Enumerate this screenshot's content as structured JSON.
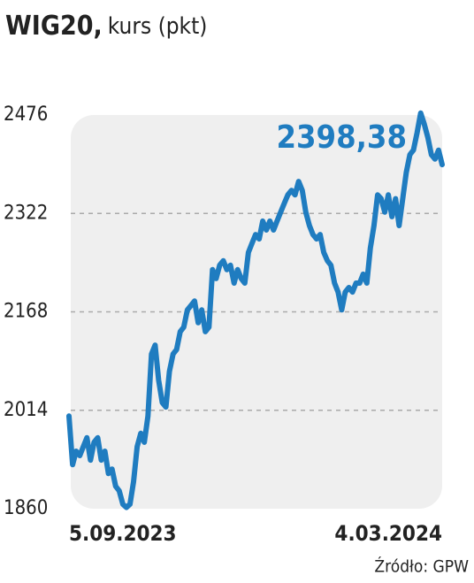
{
  "chart_data": {
    "type": "line",
    "title": "WIG20,",
    "subtitle": "kurs (pkt)",
    "source": "Źródło: GPW",
    "categories": [
      "5.09.2023",
      null,
      null,
      null,
      null,
      null,
      null,
      null,
      null,
      null,
      null,
      null,
      null,
      null,
      null,
      null,
      null,
      null,
      null,
      null,
      null,
      null,
      null,
      null,
      null,
      null,
      null,
      null,
      null,
      null,
      null,
      null,
      null,
      null,
      null,
      null,
      null,
      null,
      null,
      null,
      null,
      null,
      null,
      null,
      null,
      null,
      null,
      null,
      null,
      null,
      null,
      null,
      null,
      null,
      null,
      null,
      null,
      null,
      null,
      null,
      null,
      null,
      null,
      null,
      null,
      null,
      null,
      null,
      null,
      null,
      null,
      null,
      null,
      null,
      null,
      null,
      null,
      null,
      null,
      null,
      null,
      null,
      null,
      null,
      null,
      null,
      null,
      null,
      null,
      null,
      null,
      null,
      null,
      null,
      null,
      null,
      null,
      null,
      null,
      null,
      null,
      null,
      null,
      null,
      "4.03.2024"
    ],
    "series": [
      {
        "name": "WIG20",
        "color": "#1f7cc0",
        "values": [
          2005,
          1929,
          1950,
          1943,
          1957,
          1971,
          1936,
          1964,
          1971,
          1936,
          1950,
          1915,
          1922,
          1895,
          1888,
          1867,
          1862,
          1867,
          1902,
          1957,
          1978,
          1964,
          2005,
          2102,
          2116,
          2061,
          2026,
          2019,
          2075,
          2102,
          2109,
          2137,
          2144,
          2171,
          2178,
          2185,
          2151,
          2171,
          2137,
          2144,
          2234,
          2220,
          2241,
          2248,
          2234,
          2241,
          2213,
          2234,
          2220,
          2213,
          2261,
          2275,
          2289,
          2282,
          2310,
          2296,
          2310,
          2296,
          2310,
          2324,
          2338,
          2351,
          2358,
          2351,
          2372,
          2358,
          2324,
          2303,
          2289,
          2282,
          2289,
          2261,
          2248,
          2241,
          2213,
          2199,
          2171,
          2199,
          2206,
          2199,
          2213,
          2213,
          2227,
          2213,
          2268,
          2303,
          2351,
          2345,
          2324,
          2351,
          2317,
          2345,
          2303,
          2345,
          2386,
          2414,
          2421,
          2448,
          2479,
          2462,
          2441,
          2414,
          2407,
          2421,
          2398.38
        ],
        "value_labels": [
          null,
          null,
          null,
          null,
          null,
          null,
          null,
          null,
          null,
          null,
          null,
          null,
          null,
          null,
          null,
          null,
          null,
          null,
          null,
          null,
          null,
          null,
          null,
          null,
          null,
          null,
          null,
          null,
          null,
          null,
          null,
          null,
          null,
          null,
          null,
          null,
          null,
          null,
          null,
          null,
          null,
          null,
          null,
          null,
          null,
          null,
          null,
          null,
          null,
          null,
          null,
          null,
          null,
          null,
          null,
          null,
          null,
          null,
          null,
          null,
          null,
          null,
          null,
          null,
          null,
          null,
          null,
          null,
          null,
          null,
          null,
          null,
          null,
          null,
          null,
          null,
          null,
          null,
          null,
          null,
          null,
          null,
          null,
          null,
          null,
          null,
          null,
          null,
          null,
          null,
          null,
          null,
          null,
          null,
          null,
          null,
          null,
          null,
          null,
          null,
          null,
          null,
          null,
          null,
          "2398,38"
        ]
      }
    ],
    "ylim": [
      1860,
      2476
    ],
    "yticks": [
      1860,
      2014,
      2168,
      2322,
      2476
    ],
    "grid": true
  }
}
